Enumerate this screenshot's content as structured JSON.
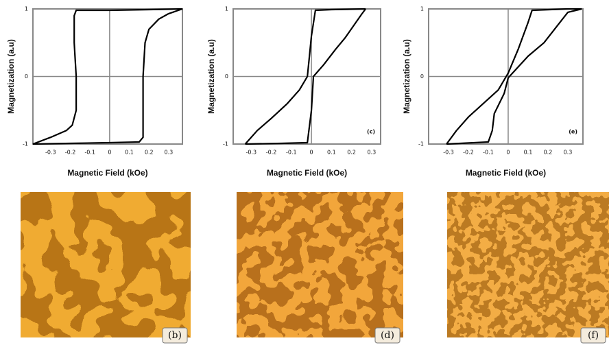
{
  "chart_data": [
    {
      "type": "line",
      "xlabel": "Magnetic Field (kOe)",
      "ylabel": "Magnetization (a.u)",
      "color": "#000000",
      "xlim": [
        -0.39,
        0.37
      ],
      "ylim": [
        -1,
        1
      ],
      "xticks": [
        -0.3,
        -0.2,
        -0.1,
        0,
        0.1,
        0.2,
        0.3
      ],
      "yticks": [
        -1,
        0,
        1
      ],
      "series": [
        {
          "x": [
            0.37,
            0.2,
            0,
            -0.17,
            -0.18,
            -0.18,
            -0.17,
            -0.17,
            -0.19,
            -0.22,
            -0.3,
            -0.39
          ],
          "values": [
            1,
            0.99,
            0.98,
            0.98,
            0.9,
            0.5,
            0,
            -0.5,
            -0.72,
            -0.8,
            -0.9,
            -1
          ]
        },
        {
          "x": [
            -0.39,
            -0.2,
            0,
            0.15,
            0.17,
            0.17,
            0.17,
            0.18,
            0.2,
            0.25,
            0.3,
            0.37
          ],
          "values": [
            -1,
            -0.99,
            -0.98,
            -0.97,
            -0.9,
            -0.5,
            0,
            0.5,
            0.7,
            0.85,
            0.93,
            1
          ]
        }
      ]
    },
    {
      "type": "line",
      "xlabel": "Magnetic Field (kOe)",
      "ylabel": "Magnetization (a.u)",
      "color": "#000000",
      "panel_label": "(c)",
      "xlim": [
        -0.39,
        0.345
      ],
      "ylim": [
        -1,
        1
      ],
      "xticks": [
        -0.3,
        -0.2,
        -0.1,
        0,
        0.1,
        0.2,
        0.3
      ],
      "yticks": [
        -1,
        0,
        1
      ],
      "series": [
        {
          "x": [
            0.27,
            0.1,
            0.02,
            0.0,
            -0.01,
            -0.02,
            -0.06,
            -0.12,
            -0.2,
            -0.27,
            -0.33
          ],
          "values": [
            1,
            0.99,
            0.98,
            0.6,
            0.3,
            0,
            -0.2,
            -0.4,
            -0.62,
            -0.8,
            -1
          ]
        },
        {
          "x": [
            -0.33,
            -0.15,
            -0.02,
            0.0,
            0.01,
            0.06,
            0.12,
            0.17,
            0.21,
            0.25,
            0.27
          ],
          "values": [
            -1,
            -0.99,
            -0.98,
            -0.5,
            0,
            0.17,
            0.4,
            0.58,
            0.75,
            0.92,
            1
          ]
        }
      ]
    },
    {
      "type": "line",
      "xlabel": "Magnetic Field (kOe)",
      "ylabel": "Magnetization (a.u)",
      "color": "#000000",
      "panel_label": "(e)",
      "xlim": [
        -0.4,
        0.376
      ],
      "ylim": [
        -1,
        1
      ],
      "xticks": [
        -0.3,
        -0.2,
        -0.1,
        0,
        0.1,
        0.2,
        0.3
      ],
      "yticks": [
        -1,
        0,
        1
      ],
      "series": [
        {
          "x": [
            0.37,
            0.3,
            0.12,
            0.1,
            0.05,
            0,
            -0.05,
            -0.2,
            -0.26,
            -0.31
          ],
          "values": [
            1,
            1,
            0.98,
            0.8,
            0.4,
            0.05,
            -0.2,
            -0.6,
            -0.8,
            -1
          ]
        },
        {
          "x": [
            -0.31,
            -0.1,
            -0.08,
            -0.07,
            -0.02,
            0,
            0.1,
            0.18,
            0.26,
            0.3,
            0.37
          ],
          "values": [
            -1,
            -0.97,
            -0.8,
            -0.55,
            -0.25,
            -0.02,
            0.3,
            0.5,
            0.8,
            0.95,
            1
          ]
        }
      ]
    }
  ],
  "images": [
    {
      "label": "(b)"
    },
    {
      "label": "(d)"
    },
    {
      "label": "(f)"
    }
  ]
}
